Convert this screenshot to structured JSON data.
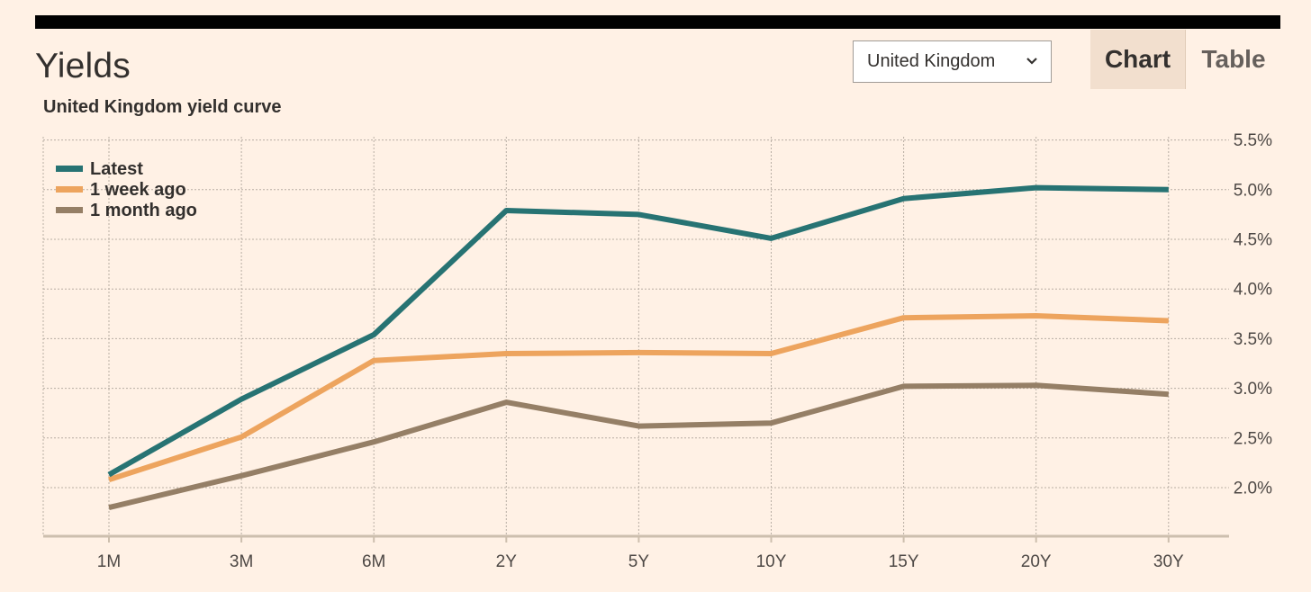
{
  "header": {
    "title": "Yields",
    "country_select": {
      "value": "United Kingdom"
    },
    "tabs": [
      {
        "label": "Chart",
        "active": true
      },
      {
        "label": "Table",
        "active": false
      }
    ]
  },
  "colors": {
    "background": "#fff1e5",
    "grid": "#b8aea4",
    "axis": "#cdbfae",
    "latest": "#277373",
    "week": "#eda45e",
    "month": "#957f66"
  },
  "chart_data": {
    "type": "line",
    "title": "United Kingdom yield curve",
    "xlabel": "",
    "ylabel": "",
    "categories": [
      "1M",
      "3M",
      "6M",
      "2Y",
      "5Y",
      "10Y",
      "15Y",
      "20Y",
      "30Y"
    ],
    "y_ticks": [
      "2.0%",
      "2.5%",
      "3.0%",
      "3.5%",
      "4.0%",
      "4.5%",
      "5.0%",
      "5.5%"
    ],
    "y_tick_values": [
      2.0,
      2.5,
      3.0,
      3.5,
      4.0,
      4.5,
      5.0,
      5.5
    ],
    "ylim": [
      1.6,
      5.6
    ],
    "y_axis_position": "right",
    "grid": true,
    "legend_position": "top-left",
    "series": [
      {
        "name": "Latest",
        "color_key": "latest",
        "values": [
          2.13,
          2.89,
          3.54,
          4.79,
          4.75,
          4.51,
          4.91,
          5.02,
          5.0
        ]
      },
      {
        "name": "1 week ago",
        "color_key": "week",
        "values": [
          2.08,
          2.51,
          3.28,
          3.35,
          3.36,
          3.35,
          3.71,
          3.73,
          3.68
        ]
      },
      {
        "name": "1 month ago",
        "color_key": "month",
        "values": [
          1.8,
          2.12,
          2.46,
          2.86,
          2.62,
          2.65,
          3.02,
          3.03,
          2.94
        ]
      }
    ]
  }
}
